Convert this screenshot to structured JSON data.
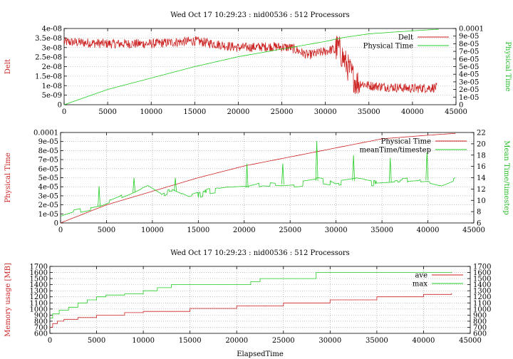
{
  "colors": {
    "series1": "#cc2222",
    "series2": "#22cc22",
    "grid": "#999999",
    "axes": "#000000"
  },
  "chart_data": [
    {
      "type": "line",
      "title": "Wed Oct 17 10:29:23 : nid00536 : 512 Processors",
      "xlabel": "",
      "ylabel_left": "Delt",
      "ylabel_right": "Physical Time",
      "xlim": [
        0,
        45000
      ],
      "ylim_left": [
        0,
        4e-08
      ],
      "ylim_right": [
        0,
        0.0001
      ],
      "xticks": [
        "0",
        "5000",
        "10000",
        "15000",
        "20000",
        "25000",
        "30000",
        "35000",
        "40000",
        "45000"
      ],
      "yticks_left": [
        "0",
        "5e-09",
        "1e-08",
        "1.5e-08",
        "2e-08",
        "2.5e-08",
        "3e-08",
        "3.5e-08",
        "4e-08"
      ],
      "yticks_right": [
        "0",
        "1e-05",
        "2e-05",
        "3e-05",
        "4e-05",
        "5e-05",
        "6e-05",
        "7e-05",
        "8e-05",
        "9e-05",
        "0.0001"
      ],
      "grid": true,
      "legend_position": "top-right",
      "series": [
        {
          "name": "Delt",
          "axis": "left",
          "noise": 2.5e-09,
          "x": [
            0,
            5000,
            10000,
            15000,
            20000,
            24000,
            26000,
            28000,
            30000,
            31500,
            32300,
            33500,
            35000,
            40000,
            42800
          ],
          "y": [
            3.3e-08,
            3.2e-08,
            3.2e-08,
            3.35e-08,
            3e-08,
            3.05e-08,
            3e-08,
            2.6e-08,
            2.8e-08,
            3e-08,
            2.2e-08,
            1.2e-08,
            1e-08,
            8.5e-09,
            9e-09
          ]
        },
        {
          "name": "Physical Time",
          "axis": "right",
          "noise": 0,
          "x": [
            0,
            5000,
            10000,
            15000,
            20000,
            25000,
            30000,
            32000,
            35000,
            40000,
            43000
          ],
          "y": [
            0.0,
            2e-05,
            3.5e-05,
            5e-05,
            6.3e-05,
            7.3e-05,
            8.3e-05,
            8.8e-05,
            9.3e-05,
            9.7e-05,
            9.9e-05
          ]
        }
      ]
    },
    {
      "type": "line",
      "title": "",
      "xlabel": "",
      "ylabel_left": "Physical Time",
      "ylabel_right": "Mean Time/timestep",
      "xlim": [
        0,
        45000
      ],
      "ylim_left": [
        0,
        0.0001
      ],
      "ylim_right": [
        6,
        22
      ],
      "xticks": [
        "0",
        "5000",
        "10000",
        "15000",
        "20000",
        "25000",
        "30000",
        "35000",
        "40000",
        "45000"
      ],
      "yticks_left": [
        "0",
        "1e-05",
        "2e-05",
        "3e-05",
        "4e-05",
        "5e-05",
        "6e-05",
        "7e-05",
        "8e-05",
        "9e-05",
        "0.0001"
      ],
      "yticks_right": [
        "6",
        "8",
        "10",
        "12",
        "14",
        "16",
        "18",
        "20",
        "22"
      ],
      "grid": true,
      "legend_position": "top-right",
      "series": [
        {
          "name": "Physical Time",
          "axis": "left",
          "noise": 0,
          "x": [
            0,
            5000,
            10000,
            15000,
            20000,
            25000,
            30000,
            35000,
            40000,
            43000
          ],
          "y": [
            0.0,
            2e-05,
            3.5e-05,
            5e-05,
            6.3e-05,
            7.3e-05,
            8.3e-05,
            9.3e-05,
            9.7e-05,
            9.9e-05
          ]
        },
        {
          "name": "meanTime/timestep",
          "axis": "right",
          "noise": 0.3,
          "x": [
            0,
            1500,
            3000,
            4500,
            6000,
            7500,
            9500,
            11000,
            12000,
            14000,
            16000,
            18000,
            20500,
            22000,
            24000,
            26000,
            28000,
            30000,
            32000,
            34000,
            36000,
            38000,
            40000,
            41500,
            43000
          ],
          "y": [
            7.2,
            8,
            8.5,
            9,
            10,
            11,
            12.5,
            11,
            12,
            10.5,
            11.5,
            12,
            12.2,
            13,
            12.8,
            13,
            13.5,
            13,
            13.5,
            13,
            13.2,
            13.4,
            13.6,
            13,
            14
          ]
        }
      ],
      "peaks": {
        "x": [
          4200,
          8000,
          12500,
          20300,
          24200,
          27900,
          31900,
          35900,
          39900
        ],
        "y": [
          12.5,
          14,
          14,
          16.5,
          16.5,
          20.5,
          18,
          17.5,
          18.5
        ]
      }
    },
    {
      "type": "line",
      "title": "Wed Oct 17 10:29:23 : nid00536 : 512 Processors",
      "xlabel": "ElapsedTime",
      "ylabel_left": "Memory usage [MB]",
      "ylabel_right": "",
      "xlim": [
        0,
        45000
      ],
      "ylim_left": [
        600,
        1700
      ],
      "ylim_right": [
        600,
        1700
      ],
      "xticks": [
        "0",
        "5000",
        "10000",
        "15000",
        "20000",
        "25000",
        "30000",
        "35000",
        "40000",
        "45000"
      ],
      "yticks_left": [
        "600",
        "700",
        "800",
        "900",
        "1000",
        "1100",
        "1200",
        "1300",
        "1400",
        "1500",
        "1600",
        "1700"
      ],
      "yticks_right": [
        "600",
        "700",
        "800",
        "900",
        "1000",
        "1100",
        "1200",
        "1300",
        "1400",
        "1500",
        "1600",
        "1700"
      ],
      "grid": true,
      "legend_position": "top-right",
      "series": [
        {
          "name": "ave",
          "axis": "left",
          "noise": 0,
          "step": true,
          "x": [
            0,
            300,
            800,
            1500,
            3000,
            5000,
            8000,
            10000,
            15000,
            20000,
            25000,
            30000,
            35000,
            40000,
            43000
          ],
          "y": [
            700,
            760,
            800,
            830,
            860,
            900,
            940,
            960,
            1010,
            1050,
            1100,
            1150,
            1200,
            1240,
            1260
          ]
        },
        {
          "name": "max",
          "axis": "left",
          "noise": 0,
          "step": true,
          "x": [
            0,
            300,
            1000,
            2000,
            3000,
            4000,
            5000,
            6000,
            8000,
            10000,
            11500,
            13000,
            21500,
            22500,
            28500,
            43000
          ],
          "y": [
            850,
            920,
            980,
            1030,
            1100,
            1150,
            1200,
            1230,
            1250,
            1300,
            1350,
            1400,
            1450,
            1500,
            1600,
            1610
          ]
        }
      ]
    }
  ]
}
